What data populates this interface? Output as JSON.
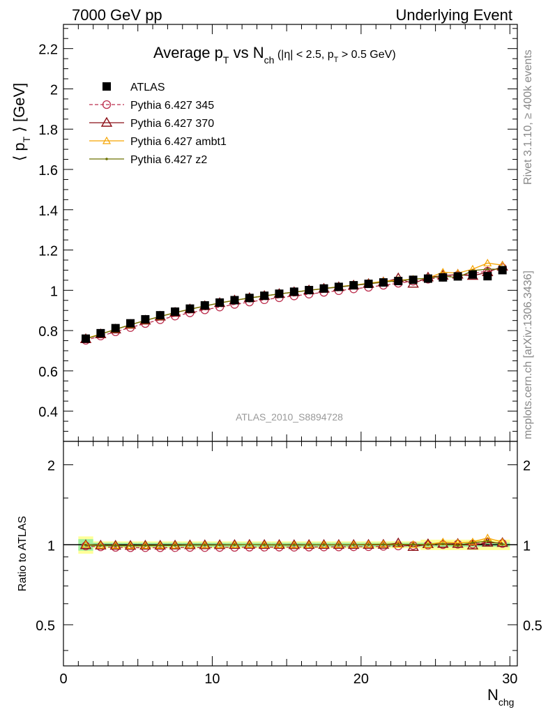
{
  "header": {
    "left": "7000 GeV pp",
    "right": "Underlying Event"
  },
  "side_labels": {
    "rivet": "Rivet 3.1.10, ≥ 400k events",
    "mcplots": "mcplots.cern.ch [arXiv:1306.3436]"
  },
  "watermark": "ATLAS_2010_S8894728",
  "title": {
    "main": "Average p",
    "main_sub": "T",
    "vs": " vs N",
    "vs_sub": "ch",
    "cuts_a": " (|η| < 2.5, p",
    "cuts_sub": "T",
    "cuts_b": " > 0.5 GeV)"
  },
  "axes": {
    "ylabel_a": "⟨ p",
    "ylabel_sub": "T",
    "ylabel_b": " ⟩ [GeV]",
    "xlabel": "N",
    "xlabel_sub": "chg",
    "ratio_ylabel": "Ratio to ATLAS"
  },
  "colors": {
    "atlas": "#000000",
    "p345": "#bc2f4e",
    "p370": "#8b0e16",
    "ambt1": "#f5a300",
    "z2": "#6b7100",
    "band_inner": "#a0f0a0",
    "band_outer": "#ffff99"
  },
  "chart_data": {
    "type": "scatter",
    "x": [
      1.5,
      2.5,
      3.5,
      4.5,
      5.5,
      6.5,
      7.5,
      8.5,
      9.5,
      10.5,
      11.5,
      12.5,
      13.5,
      14.5,
      15.5,
      16.5,
      17.5,
      18.5,
      19.5,
      20.5,
      21.5,
      22.5,
      23.5,
      24.5,
      25.5,
      26.5,
      27.5,
      28.5,
      29.5
    ],
    "xlim": [
      0,
      30.5
    ],
    "ylim": [
      0.25,
      2.32
    ],
    "ratio_ylim": [
      0.35,
      2.45
    ],
    "ratio_scale": "log",
    "xticks": [
      0,
      10,
      20,
      30
    ],
    "yticks": [
      0.4,
      0.6,
      0.8,
      1,
      1.2,
      1.4,
      1.6,
      1.8,
      2,
      2.2
    ],
    "ratio_yticks": [
      0.5,
      1,
      2
    ],
    "legend_position": "top-left",
    "series": [
      {
        "name": "ATLAS",
        "marker": "square",
        "values": [
          0.76,
          0.787,
          0.812,
          0.836,
          0.856,
          0.876,
          0.894,
          0.909,
          0.925,
          0.939,
          0.951,
          0.962,
          0.973,
          0.983,
          0.993,
          1.001,
          1.009,
          1.017,
          1.025,
          1.032,
          1.039,
          1.046,
          1.052,
          1.058,
          1.064,
          1.069,
          1.078,
          1.07,
          1.1
        ]
      },
      {
        "name": "Pythia 6.427 345",
        "marker": "circle-open",
        "line": "dashed",
        "values": [
          0.752,
          0.773,
          0.794,
          0.815,
          0.835,
          0.854,
          0.872,
          0.888,
          0.903,
          0.917,
          0.93,
          0.942,
          0.953,
          0.963,
          0.972,
          0.981,
          0.99,
          0.998,
          1.007,
          1.015,
          1.025,
          1.035,
          1.045,
          1.055,
          1.065,
          1.074,
          1.084,
          1.095,
          1.112
        ]
      },
      {
        "name": "Pythia 6.427 370",
        "marker": "triangle-open",
        "line": "solid",
        "values": [
          0.758,
          0.782,
          0.806,
          0.829,
          0.85,
          0.87,
          0.889,
          0.906,
          0.922,
          0.937,
          0.95,
          0.962,
          0.972,
          0.982,
          0.991,
          1.0,
          1.008,
          1.016,
          1.024,
          1.032,
          1.04,
          1.06,
          1.033,
          1.064,
          1.073,
          1.078,
          1.072,
          1.09,
          1.118
        ]
      },
      {
        "name": "Pythia 6.427 ambt1",
        "marker": "triangle-open-small",
        "line": "solid",
        "values": [
          0.761,
          0.783,
          0.806,
          0.829,
          0.85,
          0.87,
          0.889,
          0.906,
          0.922,
          0.937,
          0.95,
          0.962,
          0.972,
          0.982,
          0.991,
          1.0,
          1.009,
          1.018,
          1.026,
          1.035,
          1.045,
          1.05,
          1.055,
          1.06,
          1.09,
          1.085,
          1.105,
          1.135,
          1.125
        ]
      },
      {
        "name": "Pythia 6.427 z2",
        "marker": "dot",
        "line": "solid",
        "values": [
          0.758,
          0.782,
          0.806,
          0.829,
          0.85,
          0.87,
          0.889,
          0.906,
          0.922,
          0.937,
          0.95,
          0.962,
          0.972,
          0.982,
          0.991,
          1.0,
          1.009,
          1.017,
          1.025,
          1.033,
          1.041,
          1.047,
          1.055,
          1.06,
          1.071,
          1.063,
          1.098,
          1.105,
          1.105
        ]
      }
    ]
  }
}
